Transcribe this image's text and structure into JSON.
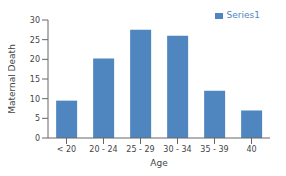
{
  "chart_data": {
    "type": "bar",
    "categories": [
      "< 20",
      "20 - 24",
      "25 - 29",
      "30 - 34",
      "35 - 39",
      "40"
    ],
    "series": [
      {
        "name": "Series1",
        "color": "#4f86c0",
        "values": [
          9.5,
          20.2,
          27.5,
          26.0,
          12.0,
          7.0
        ]
      }
    ],
    "xlabel": "Age",
    "ylabel": "Maternal Death",
    "ylim": [
      0,
      30
    ],
    "yticks": [
      0,
      5,
      10,
      15,
      20,
      25,
      30
    ],
    "grid": false,
    "legend": "upper right"
  }
}
